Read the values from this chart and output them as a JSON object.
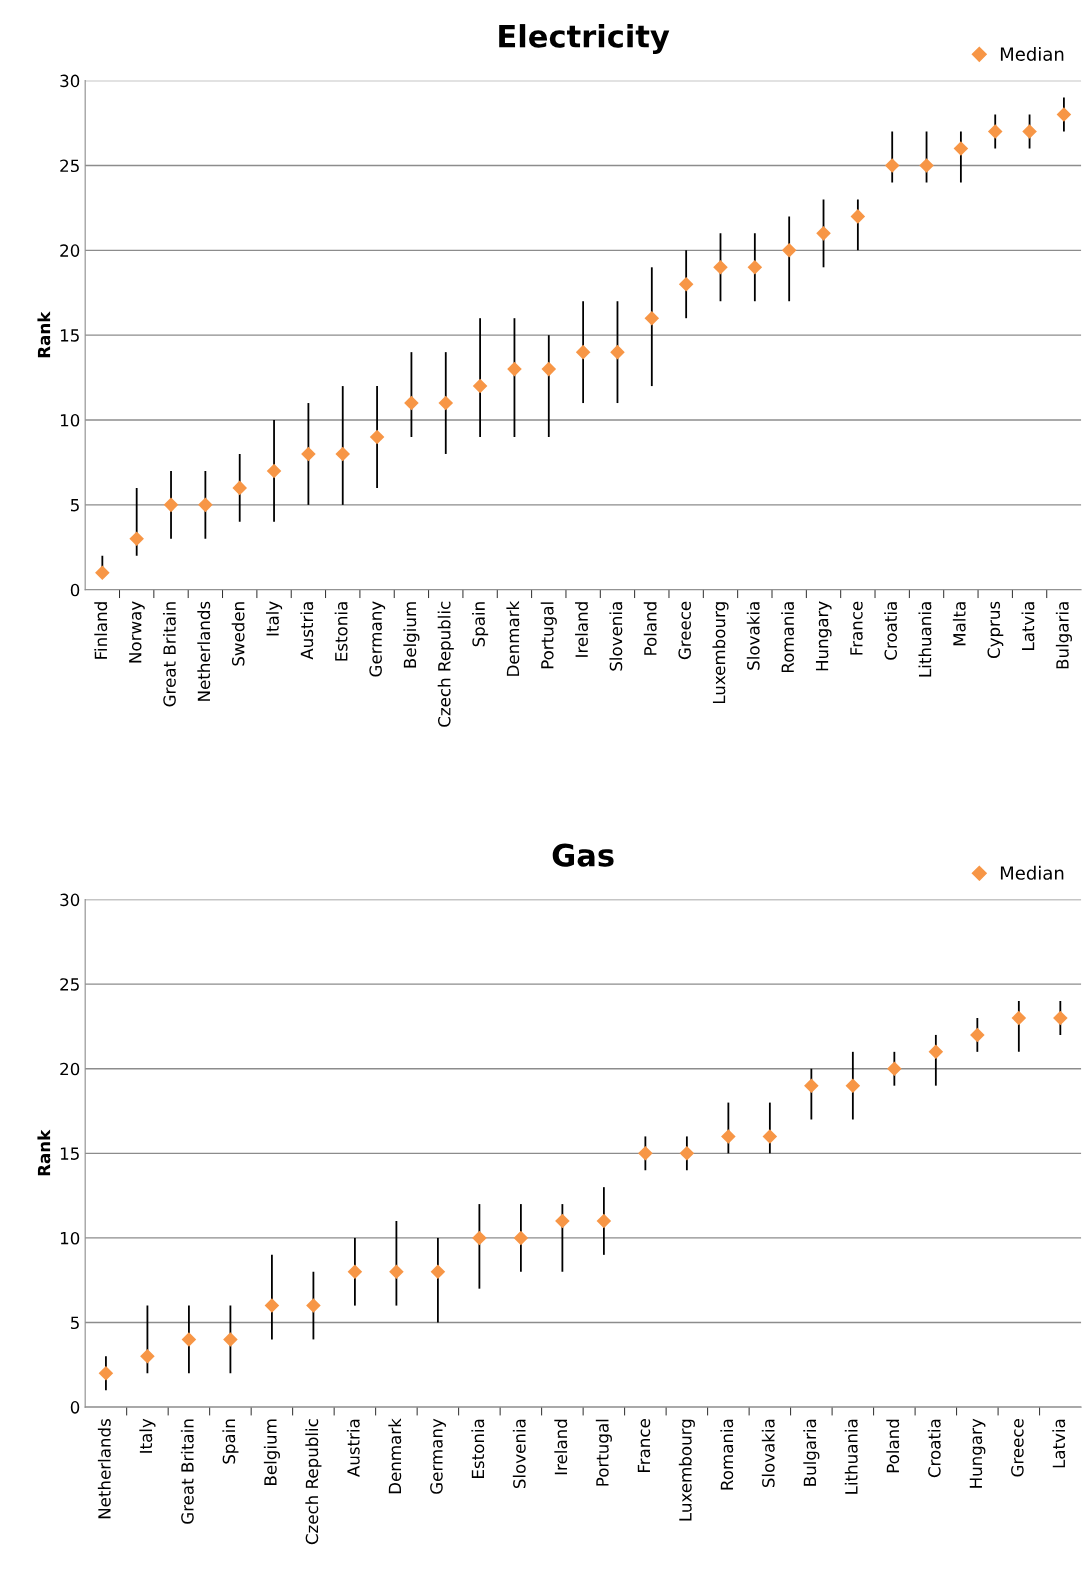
{
  "chart_data": [
    {
      "type": "scatter",
      "title": "Electricity",
      "ylabel": "Rank",
      "categories": [
        "Finland",
        "Norway",
        "Great Britain",
        "Netherlands",
        "Sweden",
        "Italy",
        "Austria",
        "Estonia",
        "Germany",
        "Belgium",
        "Czech Republic",
        "Spain",
        "Denmark",
        "Portugal",
        "Ireland",
        "Slovenia",
        "Poland",
        "Greece",
        "Luxembourg",
        "Slovakia",
        "Romania",
        "Hungary",
        "France",
        "Croatia",
        "Lithuania",
        "Malta",
        "Cyprus",
        "Latvia",
        "Bulgaria"
      ],
      "series": [
        {
          "name": "Median",
          "color": "#f79646",
          "values": [
            1,
            3,
            5,
            5,
            6,
            7,
            8,
            8,
            9,
            11,
            11,
            12,
            13,
            13,
            14,
            14,
            16,
            18,
            19,
            19,
            20,
            21,
            22,
            25,
            25,
            26,
            27,
            27,
            28
          ],
          "errors": [
            [
              1,
              2
            ],
            [
              2,
              6
            ],
            [
              3,
              7
            ],
            [
              3,
              7
            ],
            [
              4,
              8
            ],
            [
              4,
              10
            ],
            [
              5,
              11
            ],
            [
              5,
              12
            ],
            [
              6,
              12
            ],
            [
              9,
              14
            ],
            [
              8,
              14
            ],
            [
              9,
              16
            ],
            [
              9,
              16
            ],
            [
              9,
              15
            ],
            [
              11,
              17
            ],
            [
              11,
              17
            ],
            [
              12,
              19
            ],
            [
              16,
              20
            ],
            [
              17,
              21
            ],
            [
              17,
              21
            ],
            [
              17,
              22
            ],
            [
              19,
              23
            ],
            [
              20,
              23
            ],
            [
              24,
              27
            ],
            [
              24,
              27
            ],
            [
              24,
              27
            ],
            [
              26,
              28
            ],
            [
              26,
              28
            ],
            [
              27,
              29
            ]
          ]
        }
      ],
      "ylim": [
        0,
        30
      ],
      "yticks": [
        0,
        5,
        10,
        15,
        20,
        25,
        30
      ],
      "grid": "y",
      "legend": "top right",
      "marker": "diamond"
    },
    {
      "type": "scatter",
      "title": "Gas",
      "ylabel": "Rank",
      "categories": [
        "Netherlands",
        "Italy",
        "Great Britain",
        "Spain",
        "Belgium",
        "Czech Republic",
        "Austria",
        "Denmark",
        "Germany",
        "Estonia",
        "Slovenia",
        "Ireland",
        "Portugal",
        "France",
        "Luxembourg",
        "Romania",
        "Slovakia",
        "Bulgaria",
        "Lithuania",
        "Poland",
        "Croatia",
        "Hungary",
        "Greece",
        "Latvia"
      ],
      "series": [
        {
          "name": "Median",
          "color": "#f79646",
          "values": [
            2,
            3,
            4,
            4,
            6,
            6,
            8,
            8,
            8,
            10,
            10,
            11,
            11,
            15,
            15,
            16,
            16,
            19,
            19,
            20,
            21,
            22,
            23,
            23
          ],
          "errors": [
            [
              1,
              3
            ],
            [
              2,
              6
            ],
            [
              2,
              6
            ],
            [
              2,
              6
            ],
            [
              4,
              9
            ],
            [
              4,
              8
            ],
            [
              6,
              10
            ],
            [
              6,
              11
            ],
            [
              5,
              10
            ],
            [
              7,
              12
            ],
            [
              8,
              12
            ],
            [
              8,
              12
            ],
            [
              9,
              13
            ],
            [
              14,
              16
            ],
            [
              14,
              16
            ],
            [
              15,
              18
            ],
            [
              15,
              18
            ],
            [
              17,
              20
            ],
            [
              17,
              21
            ],
            [
              19,
              21
            ],
            [
              19,
              22
            ],
            [
              21,
              23
            ],
            [
              21,
              24
            ],
            [
              22,
              24
            ]
          ]
        }
      ],
      "ylim": [
        0,
        30
      ],
      "yticks": [
        0,
        5,
        10,
        15,
        20,
        25,
        30
      ],
      "grid": "y",
      "legend": "top right",
      "marker": "diamond"
    }
  ]
}
